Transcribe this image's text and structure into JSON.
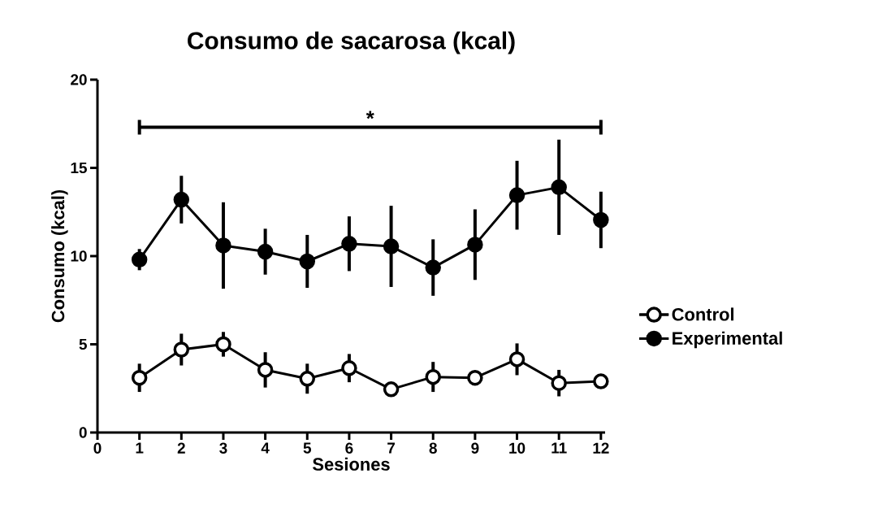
{
  "chart_data": {
    "type": "line",
    "title": "Consumo de sacarosa (kcal)",
    "xlabel": "Sesiones",
    "ylabel": "Consumo (kcal)",
    "x": [
      1,
      2,
      3,
      4,
      5,
      6,
      7,
      8,
      9,
      10,
      11,
      12
    ],
    "series": [
      {
        "name": "Control",
        "color": "#000000",
        "values": [
          3.1,
          4.7,
          5.0,
          3.55,
          3.05,
          3.65,
          2.45,
          3.15,
          3.1,
          4.15,
          2.8,
          2.9
        ],
        "errors": [
          0.8,
          0.9,
          0.7,
          1.0,
          0.85,
          0.8,
          null,
          0.85,
          null,
          0.9,
          0.75,
          null
        ]
      },
      {
        "name": "Experimental",
        "color": "#000000",
        "values": [
          9.8,
          13.2,
          10.6,
          10.25,
          9.7,
          10.7,
          10.55,
          9.35,
          10.65,
          13.45,
          13.9,
          12.05
        ],
        "errors": [
          0.6,
          1.35,
          2.45,
          1.3,
          1.5,
          1.55,
          2.3,
          1.6,
          2.0,
          1.95,
          2.7,
          1.6
        ]
      }
    ],
    "xlim": [
      0,
      12.1
    ],
    "xticks": [
      0,
      1,
      2,
      3,
      4,
      5,
      6,
      7,
      8,
      9,
      10,
      11,
      12
    ],
    "ylim": [
      0,
      20
    ],
    "yticks": [
      0,
      5,
      10,
      15,
      20
    ],
    "annotations": [
      "*"
    ],
    "legend": "right",
    "marker": "circle",
    "line_style": "solid",
    "grid": false
  }
}
